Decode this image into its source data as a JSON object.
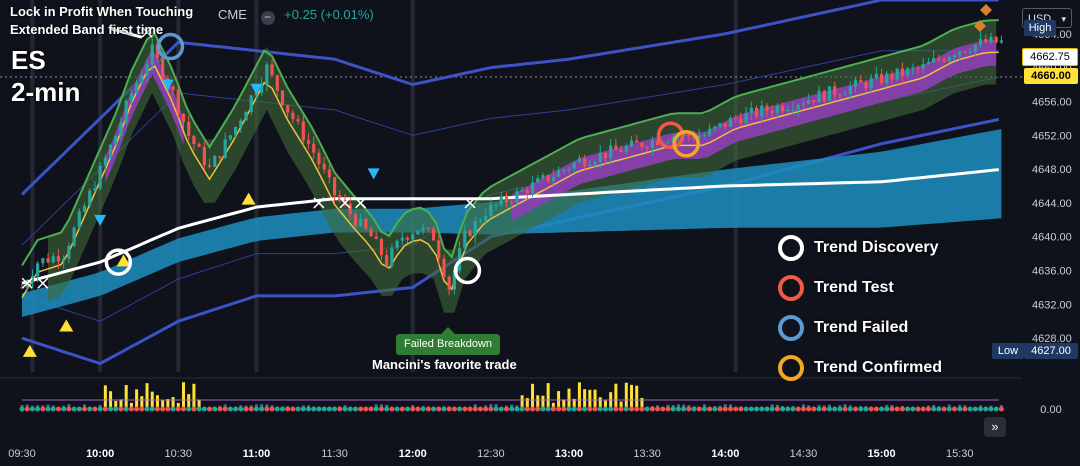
{
  "header": {
    "exchange": "CME",
    "change": "+0.25 (+0.01%)"
  },
  "currency": "USD",
  "annotations": {
    "lock_line1": "Lock in Profit When Touching",
    "lock_line2": "Extended Band first time",
    "symbol": "ES",
    "timeframe": "2-min",
    "failed_breakdown": "Failed Breakdown",
    "favorite_trade": "Mancini's favorite trade"
  },
  "legend": [
    {
      "label": "Trend Discovery",
      "color": "#ffffff"
    },
    {
      "label": "Trend Test",
      "color": "#ef5b45"
    },
    {
      "label": "Trend Failed",
      "color": "#5b9bd5"
    },
    {
      "label": "Trend Confirmed",
      "color": "#f5a623"
    }
  ],
  "price_labels": {
    "high_tag": "High",
    "high_value": "4664.00",
    "last_value": "4662.75",
    "current_value": "4660.00",
    "low_tag": "Low",
    "low_value": "4627.00",
    "indicator_value": "0.00"
  },
  "colors": {
    "background": "#0f111b",
    "up": "#26a69a",
    "down": "#ef5350",
    "accent": "#ffe135"
  },
  "chart_data": {
    "type": "candlestick",
    "ylim": [
      4624,
      4668
    ],
    "y_ticks": [
      "4664.00",
      "4660.00",
      "4656.00",
      "4652.00",
      "4648.00",
      "4644.00",
      "4640.00",
      "4636.00",
      "4632.00",
      "4628.00"
    ],
    "x_ticks": [
      {
        "label": "09:30",
        "bold": false
      },
      {
        "label": "10:00",
        "bold": true
      },
      {
        "label": "10:30",
        "bold": false
      },
      {
        "label": "11:00",
        "bold": true
      },
      {
        "label": "11:30",
        "bold": false
      },
      {
        "label": "12:00",
        "bold": true
      },
      {
        "label": "12:30",
        "bold": false
      },
      {
        "label": "13:00",
        "bold": true
      },
      {
        "label": "13:30",
        "bold": false
      },
      {
        "label": "14:00",
        "bold": true
      },
      {
        "label": "14:30",
        "bold": false
      },
      {
        "label": "15:00",
        "bold": true
      },
      {
        "label": "15:30",
        "bold": false
      }
    ],
    "close_path": [
      [
        "09:30",
        4634
      ],
      [
        "09:36",
        4637
      ],
      [
        "09:46",
        4638
      ],
      [
        "09:56",
        4645
      ],
      [
        "10:06",
        4652
      ],
      [
        "10:12",
        4657
      ],
      [
        "10:20",
        4662
      ],
      [
        "10:28",
        4657
      ],
      [
        "10:34",
        4652
      ],
      [
        "10:42",
        4648
      ],
      [
        "10:52",
        4653
      ],
      [
        "11:04",
        4660
      ],
      [
        "11:12",
        4655
      ],
      [
        "11:22",
        4650
      ],
      [
        "11:30",
        4645
      ],
      [
        "11:38",
        4642
      ],
      [
        "11:44",
        4640
      ],
      [
        "11:50",
        4637
      ],
      [
        "11:56",
        4640
      ],
      [
        "12:02",
        4641
      ],
      [
        "12:08",
        4640
      ],
      [
        "12:14",
        4634
      ],
      [
        "12:20",
        4640
      ],
      [
        "12:28",
        4643
      ],
      [
        "12:40",
        4645
      ],
      [
        "12:52",
        4647
      ],
      [
        "13:04",
        4649
      ],
      [
        "13:16",
        4650
      ],
      [
        "13:28",
        4651
      ],
      [
        "13:40",
        4652
      ],
      [
        "13:52",
        4652
      ],
      [
        "14:04",
        4654
      ],
      [
        "14:16",
        4655
      ],
      [
        "14:28",
        4656
      ],
      [
        "14:40",
        4657
      ],
      [
        "14:52",
        4658
      ],
      [
        "15:04",
        4659
      ],
      [
        "15:16",
        4660
      ],
      [
        "15:28",
        4662
      ],
      [
        "15:40",
        4663
      ]
    ],
    "vwap": [
      [
        "09:30",
        4634.5
      ],
      [
        "10:00",
        4637
      ],
      [
        "10:30",
        4641
      ],
      [
        "11:00",
        4643.5
      ],
      [
        "11:30",
        4644.5
      ],
      [
        "12:00",
        4644.5
      ],
      [
        "12:30",
        4644.5
      ],
      [
        "13:00",
        4645
      ],
      [
        "14:00",
        4646
      ],
      [
        "15:00",
        4646.5
      ],
      [
        "15:47",
        4648
      ]
    ],
    "outer_band_upper": [
      [
        "09:30",
        4645
      ],
      [
        "10:00",
        4654
      ],
      [
        "10:30",
        4663
      ],
      [
        "11:00",
        4662
      ],
      [
        "11:30",
        4661
      ],
      [
        "12:00",
        4658
      ],
      [
        "12:30",
        4660
      ],
      [
        "13:00",
        4661
      ],
      [
        "14:00",
        4664
      ],
      [
        "15:00",
        4668
      ],
      [
        "15:47",
        4668
      ]
    ],
    "outer_band_lower": [
      [
        "09:30",
        4628
      ],
      [
        "10:00",
        4625
      ],
      [
        "10:30",
        4630
      ],
      [
        "11:00",
        4633
      ],
      [
        "11:30",
        4633
      ],
      [
        "12:00",
        4634
      ],
      [
        "12:30",
        4640
      ],
      [
        "13:00",
        4642
      ],
      [
        "14:00",
        4646
      ],
      [
        "15:00",
        4651
      ],
      [
        "15:47",
        4654
      ]
    ],
    "markers": [
      {
        "type": "trend-discovery",
        "color": "#ffffff",
        "time": "10:07",
        "price": 4637
      },
      {
        "type": "trend-failed",
        "color": "#5b9bd5",
        "time": "10:27",
        "price": 4662.5
      },
      {
        "type": "trend-discovery",
        "color": "#ffffff",
        "time": "12:21",
        "price": 4636
      },
      {
        "type": "trend-test",
        "color": "#ef5b45",
        "time": "13:39",
        "price": 4652
      },
      {
        "type": "trend-confirmed",
        "color": "#f5a623",
        "time": "13:45",
        "price": 4651
      }
    ]
  }
}
